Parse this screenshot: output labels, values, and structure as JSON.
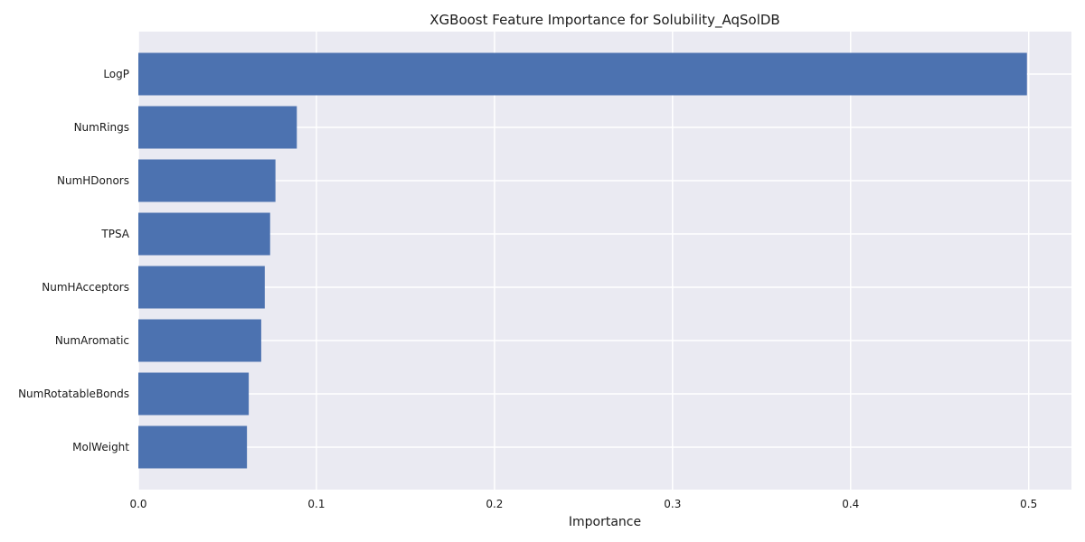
{
  "chart_data": {
    "type": "bar",
    "orientation": "horizontal",
    "title": "XGBoost Feature Importance for Solubility_AqSolDB",
    "xlabel": "Importance",
    "ylabel": "",
    "categories": [
      "LogP",
      "NumRings",
      "NumHDonors",
      "TPSA",
      "NumHAcceptors",
      "NumAromatic",
      "NumRotatableBonds",
      "MolWeight"
    ],
    "values": [
      0.499,
      0.089,
      0.077,
      0.074,
      0.071,
      0.069,
      0.062,
      0.061
    ],
    "xlim": [
      0,
      0.524
    ],
    "xticks": [
      "0.0",
      "0.1",
      "0.2",
      "0.3",
      "0.4",
      "0.5"
    ],
    "grid": true,
    "bar_color": "#4c72b0",
    "background_color": "#eaeaf2"
  }
}
